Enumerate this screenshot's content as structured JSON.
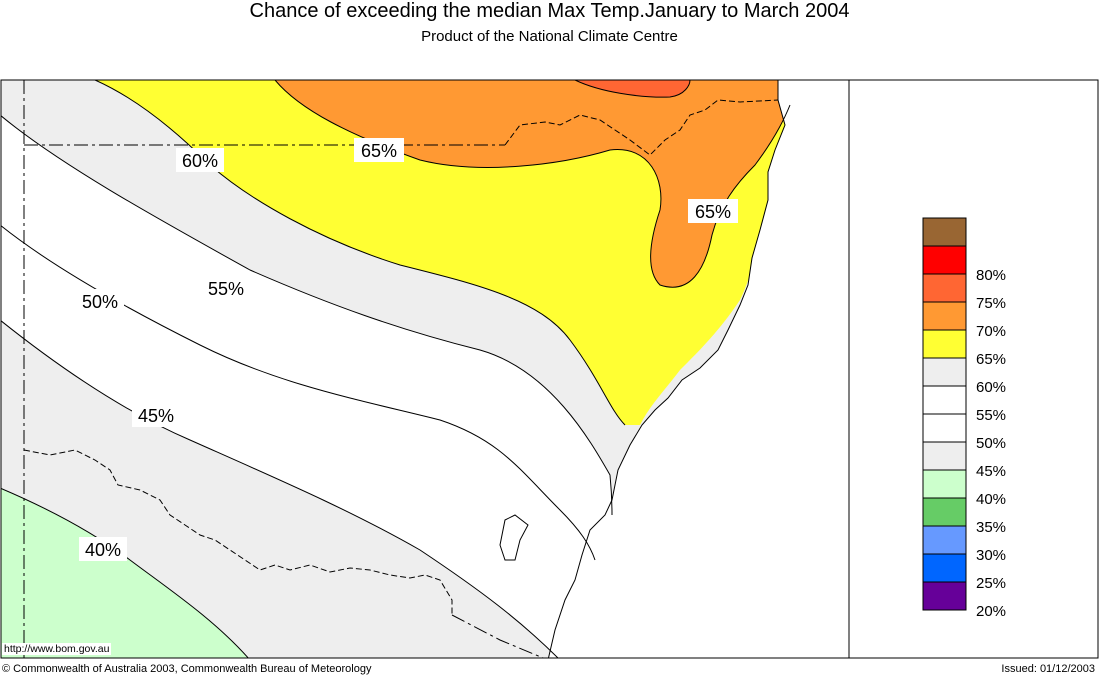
{
  "header": {
    "title": "Chance of exceeding the median Max Temp.January to March 2004",
    "subtitle": "Product of the National Climate Centre"
  },
  "map": {
    "contour_labels": [
      "60%",
      "65%",
      "65%",
      "55%",
      "50%",
      "45%",
      "40%"
    ],
    "url_label": "http://www.bom.gov.au",
    "colors": {
      "c35_40": "#ccffcc",
      "c40_45": "#eeeeee",
      "c45_55": "#ffffff",
      "c55_60": "#eeeeee",
      "c60_65": "#ffff33",
      "c65_70": "#ff9933",
      "c70_75": "#ff6633"
    }
  },
  "legend": {
    "items": [
      {
        "label": "",
        "color": "#996633"
      },
      {
        "label": "80%",
        "color": "#ff0000"
      },
      {
        "label": "75%",
        "color": "#ff6633"
      },
      {
        "label": "70%",
        "color": "#ff9933"
      },
      {
        "label": "65%",
        "color": "#ffff33"
      },
      {
        "label": "60%",
        "color": "#eeeeee"
      },
      {
        "label": "55%",
        "color": "#ffffff"
      },
      {
        "label": "50%",
        "color": "#ffffff"
      },
      {
        "label": "45%",
        "color": "#eeeeee"
      },
      {
        "label": "40%",
        "color": "#ccffcc"
      },
      {
        "label": "35%",
        "color": "#66cc66"
      },
      {
        "label": "30%",
        "color": "#6699ff"
      },
      {
        "label": "25%",
        "color": "#0066ff"
      },
      {
        "label": "20%",
        "color": "#660099"
      }
    ]
  },
  "footer": {
    "copyright": "© Commonwealth of Australia 2003, Commonwealth Bureau of Meteorology",
    "issued": "Issued: 01/12/2003"
  }
}
